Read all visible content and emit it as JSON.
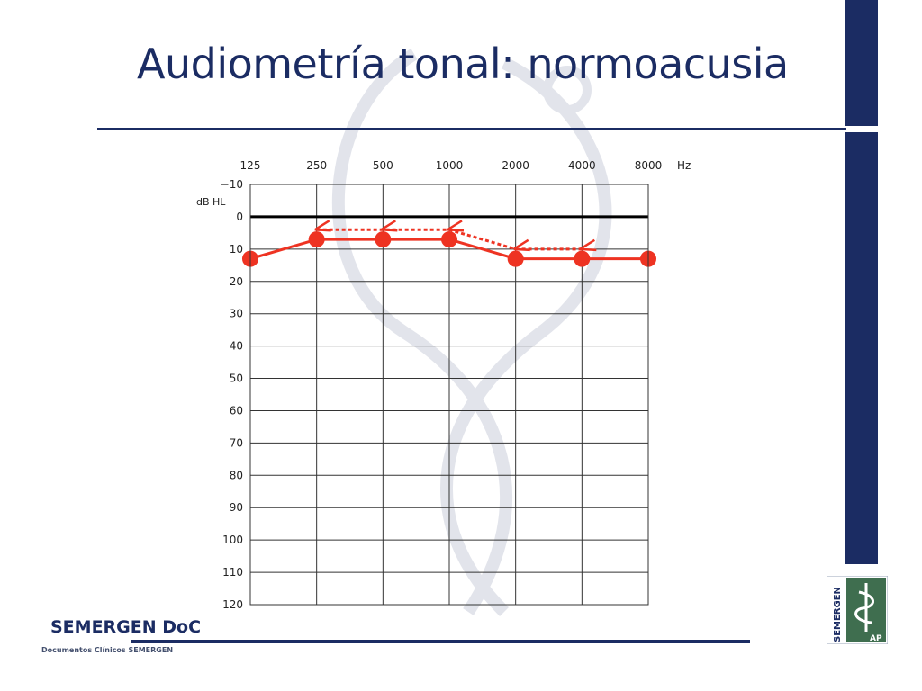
{
  "slide": {
    "title": "Audiometría tonal: normoacusia",
    "brand": "SEMERGEN DoC",
    "brand_subtitle": "Documentos Clínicos SEMERGEN",
    "logo_text": "SEMERGEN",
    "logo_badge": "AP",
    "colors": {
      "navy": "#1b2c63",
      "series_red": "#ee3322",
      "grid": "#333333"
    }
  },
  "chart_data": {
    "type": "line",
    "x_unit": "Hz",
    "y_unit": "dB HL",
    "x": [
      125,
      250,
      500,
      1000,
      2000,
      4000,
      8000
    ],
    "x_tick_labels": [
      "125",
      "250",
      "500",
      "1000",
      "2000",
      "4000",
      "8000"
    ],
    "y_ticks": [
      -10,
      0,
      10,
      20,
      30,
      40,
      50,
      60,
      70,
      80,
      90,
      100,
      110,
      120
    ],
    "ylim": [
      -10,
      120
    ],
    "y_inverted": true,
    "reference_line_y": 0,
    "grid": true,
    "series": [
      {
        "marker": "filled-circle",
        "style": "solid",
        "color": "#ee3322",
        "values": [
          13,
          7,
          7,
          7,
          13,
          13,
          13
        ]
      },
      {
        "marker": "arrow-left",
        "style": "dotted",
        "color": "#ee3322",
        "x": [
          250,
          500,
          1000,
          2000,
          4000
        ],
        "values": [
          4,
          4,
          4,
          10,
          10
        ]
      }
    ]
  }
}
